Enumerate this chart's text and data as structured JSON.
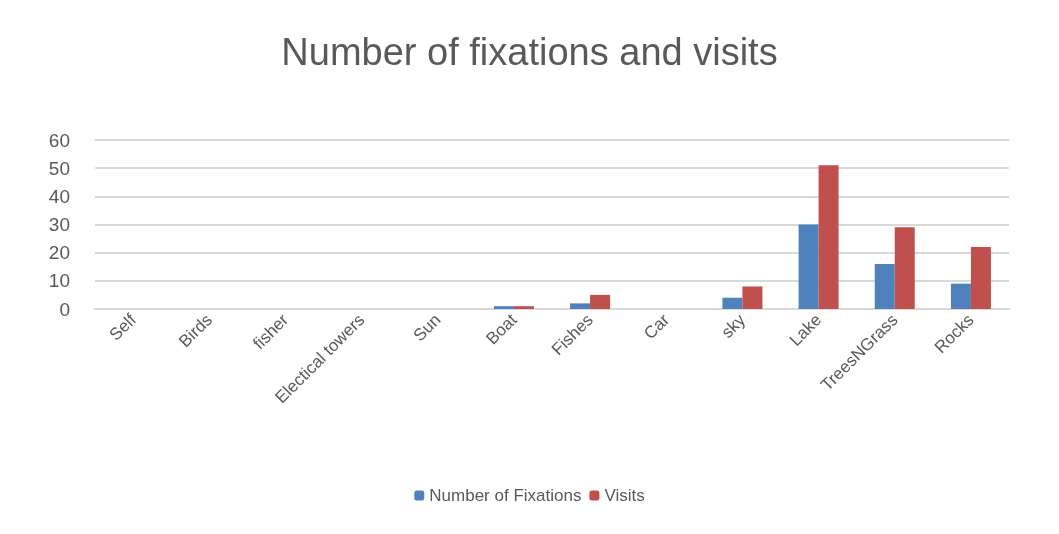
{
  "chart_data": {
    "type": "bar",
    "title": "Number of fixations and visits",
    "categories": [
      "Self",
      "Birds",
      "fisher",
      "Electical towers",
      "Sun",
      "Boat",
      "Fishes",
      "Car",
      "sky",
      "Lake",
      "TreesNGrass",
      "Rocks"
    ],
    "series": [
      {
        "name": "Number of Fixations",
        "color": "#4f81bd",
        "values": [
          0,
          0,
          0,
          0,
          0,
          1,
          2,
          0,
          4,
          30,
          16,
          9
        ]
      },
      {
        "name": "Visits",
        "color": "#c0504d",
        "values": [
          0,
          0,
          0,
          0,
          0,
          1,
          5,
          0,
          8,
          51,
          29,
          22
        ]
      }
    ],
    "ylim": [
      0,
      60
    ],
    "yticks": [
      0,
      10,
      20,
      30,
      40,
      50,
      60
    ],
    "grid": "y",
    "legend": "bottom"
  }
}
